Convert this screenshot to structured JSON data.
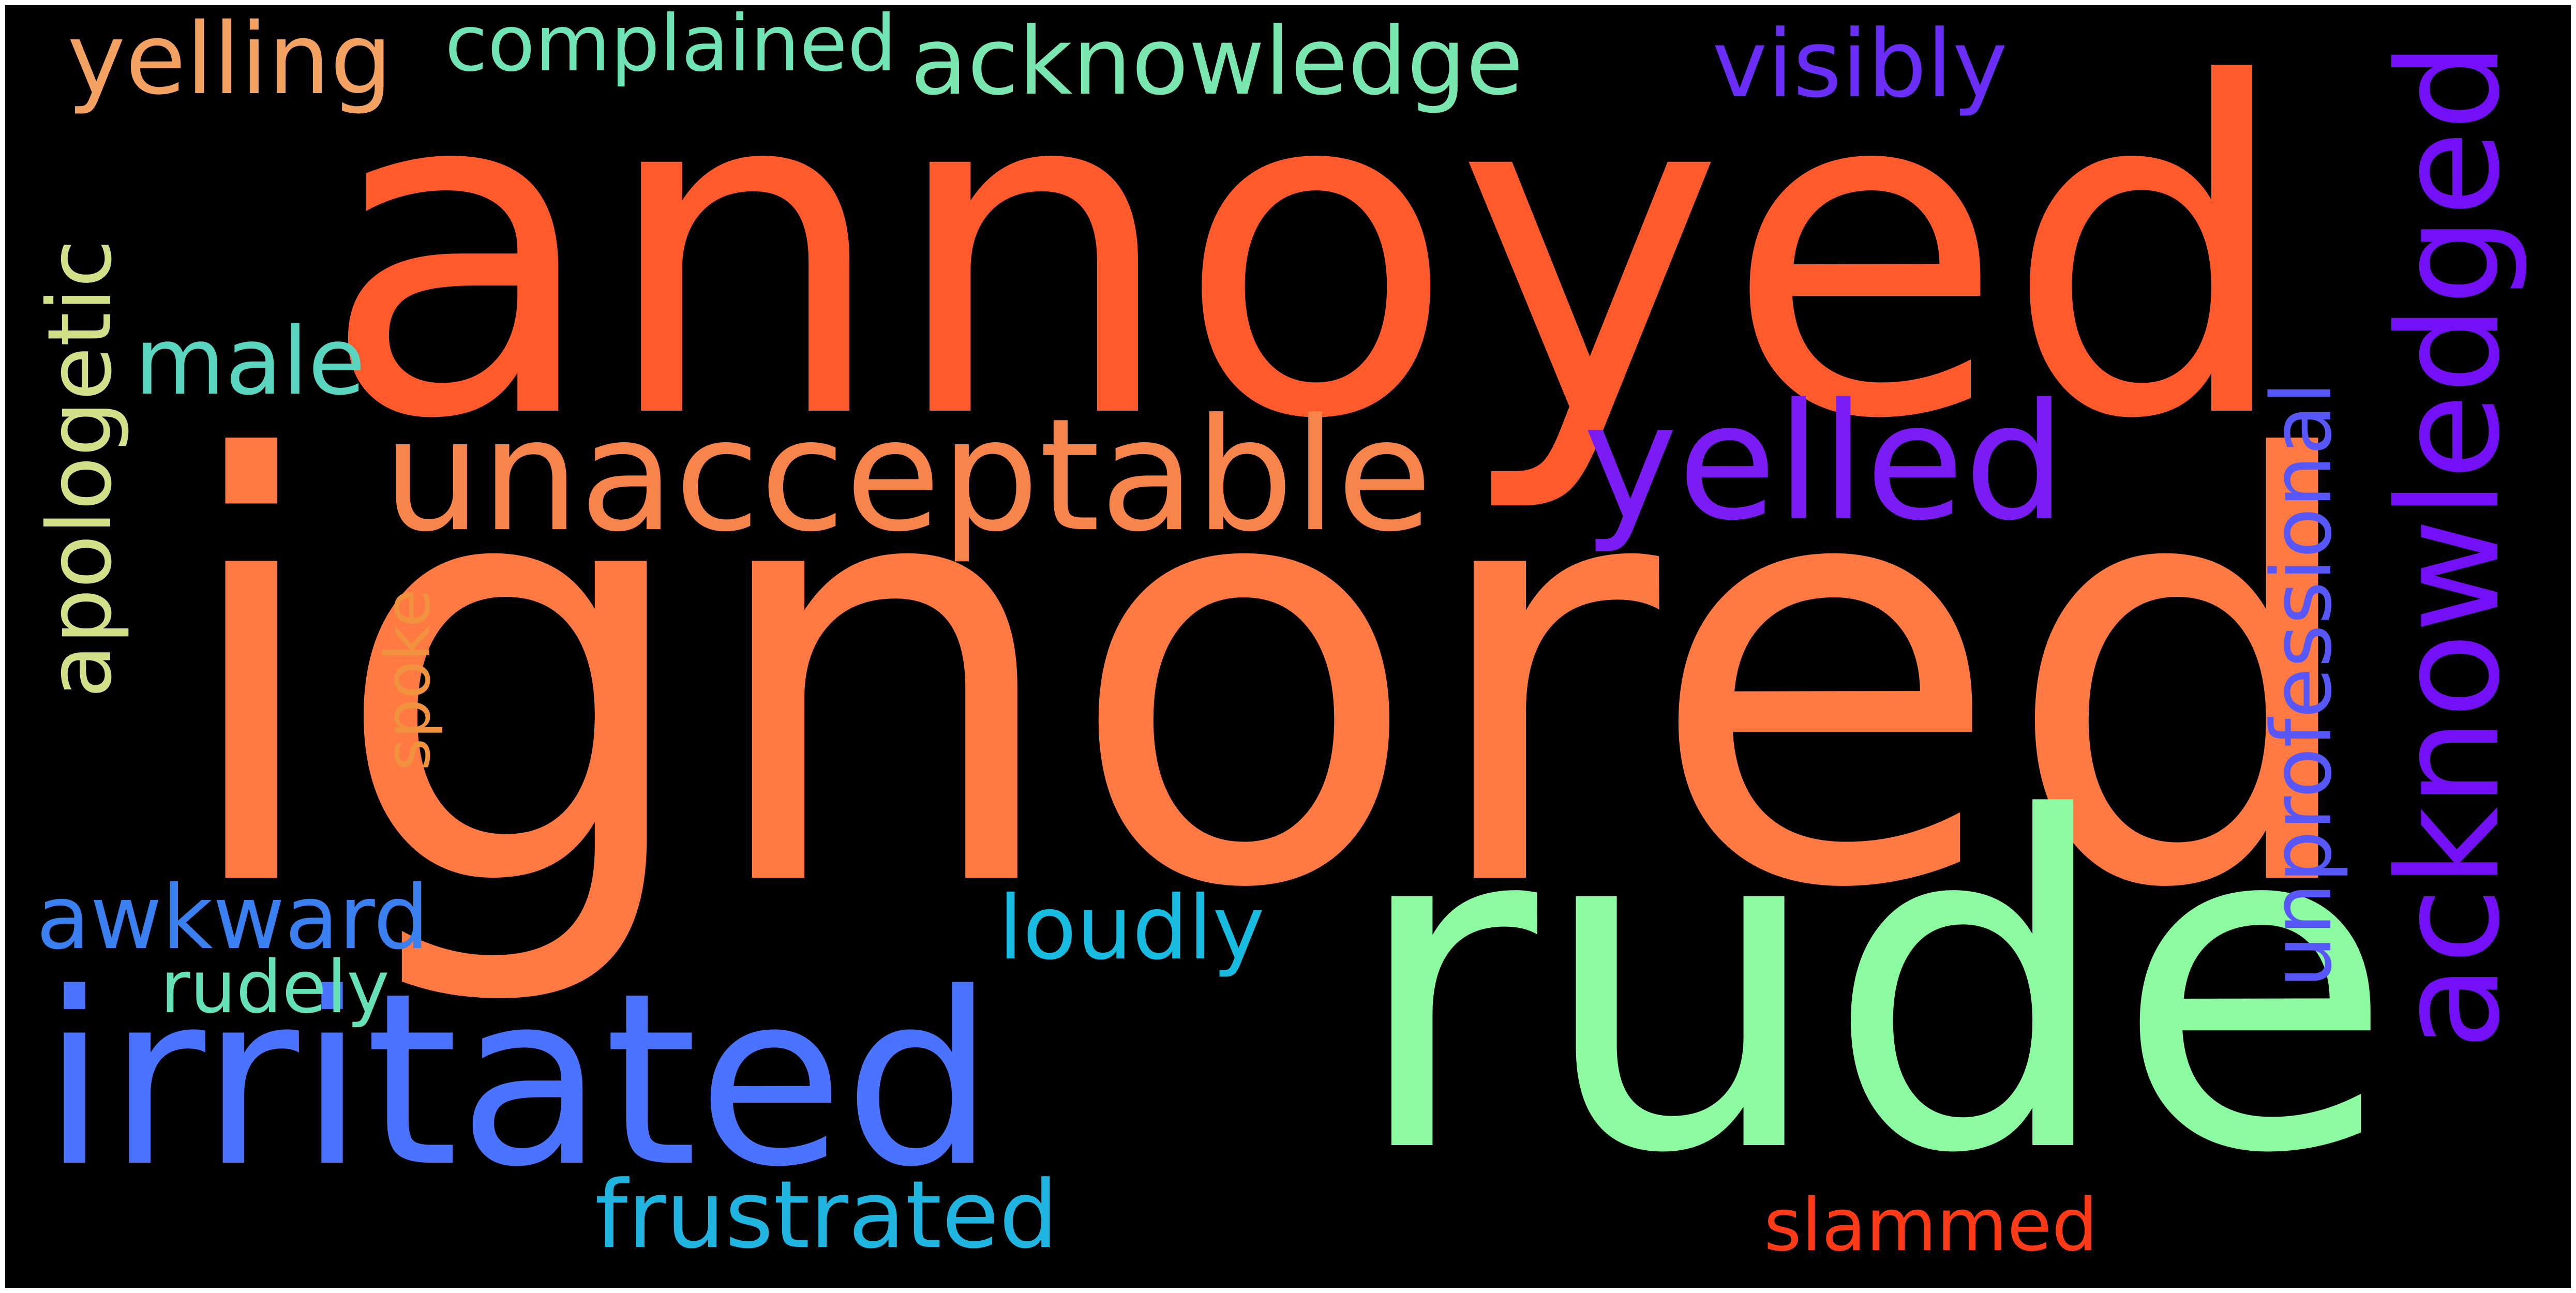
{
  "words": {
    "annoyed": {
      "text": "annoyed",
      "color": "#ff5a2c"
    },
    "ignored": {
      "text": "ignored",
      "color": "#ff7a42"
    },
    "rude": {
      "text": "rude",
      "color": "#8cfaa0"
    },
    "irritated": {
      "text": "irritated",
      "color": "#4a74ff"
    },
    "unacceptable": {
      "text": "unacceptable",
      "color": "#f7844a"
    },
    "yelled": {
      "text": "yelled",
      "color": "#7c1cf4"
    },
    "acknowledged": {
      "text": "acknowledged",
      "color": "#7410f8"
    },
    "unprofessional": {
      "text": "unprofessional",
      "color": "#5858fa"
    },
    "acknowledge": {
      "text": "acknowledge",
      "color": "#7ae6b0"
    },
    "yelling": {
      "text": "yelling",
      "color": "#f3a262"
    },
    "complained": {
      "text": "complained",
      "color": "#70e4b4"
    },
    "visibly": {
      "text": "visibly",
      "color": "#6a2ef8"
    },
    "apologetic": {
      "text": "apologetic",
      "color": "#d2e08a"
    },
    "male": {
      "text": "male",
      "color": "#5ad6c0"
    },
    "spoke": {
      "text": "spoke",
      "color": "#f0923e"
    },
    "awkward": {
      "text": "awkward",
      "color": "#3a80f0"
    },
    "rudely": {
      "text": "rudely",
      "color": "#66e2b6"
    },
    "loudly": {
      "text": "loudly",
      "color": "#18bce0"
    },
    "frustrated": {
      "text": "frustrated",
      "color": "#20b4e0"
    },
    "slammed": {
      "text": "slammed",
      "color": "#ff3a16"
    }
  }
}
